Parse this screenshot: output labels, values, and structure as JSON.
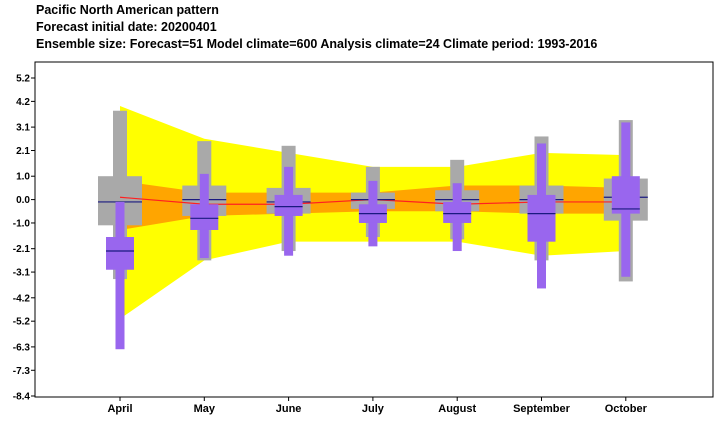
{
  "header": {
    "title": "Pacific North American pattern",
    "subtitle": "Forecast initial date: 20200401",
    "info": "Ensemble size: Forecast=51 Model climate=600 Analysis climate=24   Climate period: 1993-2016"
  },
  "chart_data": {
    "type": "box-plume",
    "categories": [
      "April",
      "May",
      "June",
      "July",
      "August",
      "September",
      "October"
    ],
    "y_ticks": [
      "5.2",
      "4.2",
      "3.1",
      "2.1",
      "1.0",
      "0.0",
      "-1.0",
      "-2.1",
      "-3.1",
      "-4.2",
      "-5.2",
      "-6.3",
      "-7.3",
      "-8.4"
    ],
    "ylim": [
      -8.4,
      5.2
    ],
    "grid": false,
    "colors": {
      "climate_outer": "#ffff00",
      "climate_inner": "#ffa500",
      "climate_median": "#ff2020",
      "model_climate_box": "#a9a9a9",
      "forecast_box": "#9966ee",
      "median_line": "#1a1a80"
    },
    "climate_band": {
      "outer_upper": [
        4.0,
        2.6,
        2.0,
        1.4,
        1.4,
        2.0,
        1.9
      ],
      "outer_lower": [
        -5.1,
        -2.6,
        -1.8,
        -1.8,
        -1.8,
        -2.4,
        -2.2
      ],
      "inner_upper": [
        0.8,
        0.3,
        0.3,
        0.3,
        0.6,
        0.6,
        0.5
      ],
      "inner_lower": [
        -1.3,
        -0.7,
        -0.6,
        -0.5,
        -0.5,
        -0.6,
        -0.6
      ],
      "median": [
        0.1,
        -0.2,
        -0.2,
        0.0,
        -0.2,
        -0.1,
        -0.1
      ]
    },
    "model_climate": [
      {
        "min": -3.4,
        "p10": -1.1,
        "p25": -1.1,
        "median": -0.1,
        "p75": 1.0,
        "p90": 1.0,
        "max": 3.8
      },
      {
        "min": -2.6,
        "p10": -0.7,
        "p25": -0.7,
        "median": 0.0,
        "p75": 0.6,
        "p90": 0.6,
        "max": 2.5
      },
      {
        "min": -2.2,
        "p10": -0.6,
        "p25": -0.6,
        "median": -0.1,
        "p75": 0.5,
        "p90": 0.5,
        "max": 2.3
      },
      {
        "min": -1.6,
        "p10": -0.4,
        "p25": -0.4,
        "median": 0.0,
        "p75": 0.3,
        "p90": 0.3,
        "max": 1.4
      },
      {
        "min": -1.7,
        "p10": -0.5,
        "p25": -0.5,
        "median": 0.0,
        "p75": 0.4,
        "p90": 0.4,
        "max": 1.7
      },
      {
        "min": -2.6,
        "p10": -0.6,
        "p25": -0.6,
        "median": 0.0,
        "p75": 0.6,
        "p90": 0.6,
        "max": 2.7
      },
      {
        "min": -3.5,
        "p10": -0.9,
        "p25": -0.9,
        "median": 0.1,
        "p75": 0.9,
        "p90": 0.9,
        "max": 3.4
      }
    ],
    "forecast": [
      {
        "min": -6.4,
        "p10": -3.0,
        "p25": -3.0,
        "median": -2.2,
        "p75": -1.6,
        "p90": -1.6,
        "max": -0.1
      },
      {
        "min": -2.5,
        "p10": -1.3,
        "p25": -1.3,
        "median": -0.8,
        "p75": -0.2,
        "p90": -0.2,
        "max": 1.1
      },
      {
        "min": -2.4,
        "p10": -0.7,
        "p25": -0.7,
        "median": -0.3,
        "p75": 0.2,
        "p90": 0.2,
        "max": 1.4
      },
      {
        "min": -2.0,
        "p10": -1.0,
        "p25": -1.0,
        "median": -0.6,
        "p75": -0.2,
        "p90": -0.2,
        "max": 0.8
      },
      {
        "min": -2.2,
        "p10": -1.0,
        "p25": -1.0,
        "median": -0.6,
        "p75": -0.1,
        "p90": -0.1,
        "max": 0.7
      },
      {
        "min": -3.8,
        "p10": -1.8,
        "p25": -1.8,
        "median": -0.6,
        "p75": 0.2,
        "p90": 0.2,
        "max": 2.4
      },
      {
        "min": -3.3,
        "p10": -0.6,
        "p25": -0.6,
        "median": -0.4,
        "p75": 1.0,
        "p90": 1.0,
        "max": 3.3
      }
    ]
  }
}
